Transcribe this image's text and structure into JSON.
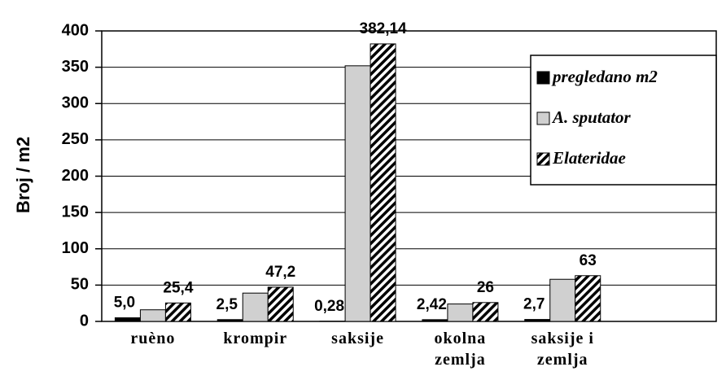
{
  "chart_data": {
    "type": "bar",
    "y_label": "Broj / m2",
    "categories": [
      "ruèno",
      "krompir",
      "saksije",
      "okolna\nzemlja",
      "saksije i\nzemlja",
      null
    ],
    "series": [
      {
        "name": "pregledano m2",
        "color": "#000000",
        "values": [
          5.0,
          2.5,
          0.28,
          2.42,
          2.7,
          null
        ],
        "value_labels": [
          "5,0",
          "2,5",
          "0,28",
          "2,42",
          "2,7",
          null
        ]
      },
      {
        "name": "A. sputator",
        "color": "#d0d0d0",
        "values": [
          16,
          39,
          352,
          24,
          58,
          null
        ]
      },
      {
        "name": "Elateridae",
        "color": "#000000",
        "pattern": "hatch",
        "values": [
          25.4,
          47.2,
          382.14,
          26,
          63,
          null
        ],
        "value_labels": [
          "25,4",
          "47,2",
          "382,14",
          "26",
          "63",
          null
        ]
      }
    ],
    "ylim": [
      0,
      400
    ],
    "yticks": [
      0,
      50,
      100,
      150,
      200,
      250,
      300,
      350,
      400
    ],
    "grid": true,
    "legend": "upper right"
  }
}
